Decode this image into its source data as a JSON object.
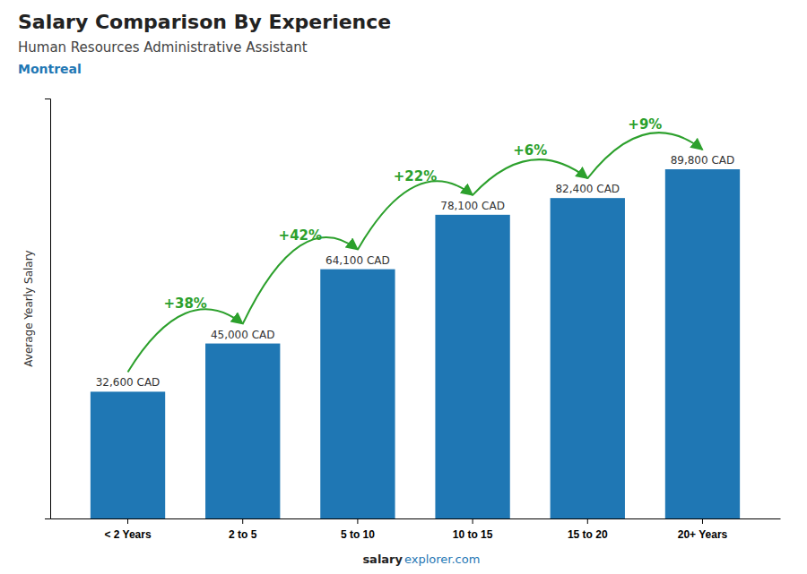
{
  "chart_data": {
    "type": "bar",
    "title": "Salary Comparison By Experience",
    "subtitle": "Human Resources Administrative Assistant",
    "location": "Montreal",
    "ylabel": "Average Yearly Salary",
    "categories": [
      "< 2 Years",
      "2 to 5",
      "5 to 10",
      "10 to 15",
      "15 to 20",
      "20+ Years"
    ],
    "values": [
      32600,
      45000,
      64100,
      78100,
      82400,
      89800
    ],
    "value_labels": [
      "32,600 CAD",
      "45,000 CAD",
      "64,100 CAD",
      "78,100 CAD",
      "82,400 CAD",
      "89,800 CAD"
    ],
    "data_labels": true,
    "change_labels": [
      null,
      "+38%",
      "+42%",
      "+22%",
      "+6%",
      "+9%"
    ],
    "footer": [
      "salary",
      "explorer.com"
    ],
    "ylim": [
      0,
      108000
    ],
    "tick_labels": "x"
  }
}
